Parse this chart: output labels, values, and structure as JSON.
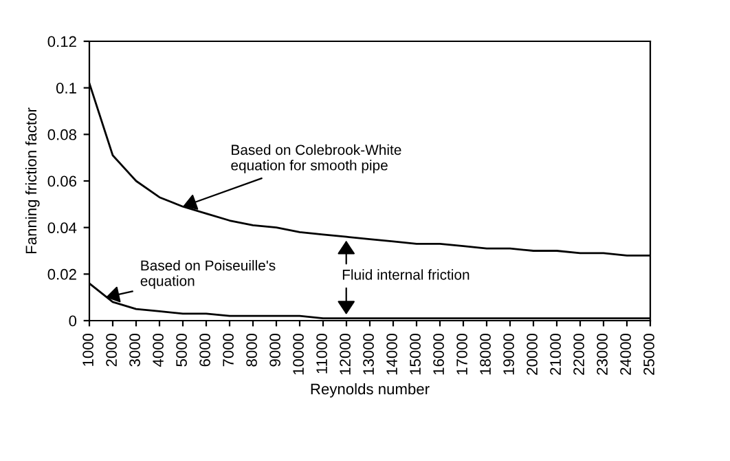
{
  "chart_data": {
    "type": "line",
    "xlabel": "Reynolds number",
    "ylabel": "Fanning friction factor",
    "x": [
      1000,
      2000,
      3000,
      4000,
      5000,
      6000,
      7000,
      8000,
      9000,
      10000,
      11000,
      12000,
      13000,
      14000,
      15000,
      16000,
      17000,
      18000,
      19000,
      20000,
      21000,
      22000,
      23000,
      24000,
      25000
    ],
    "series": [
      {
        "color": "#000000",
        "values": [
          0.102,
          0.071,
          0.06,
          0.053,
          0.049,
          0.046,
          0.043,
          0.041,
          0.04,
          0.038,
          0.037,
          0.036,
          0.035,
          0.034,
          0.033,
          0.033,
          0.032,
          0.031,
          0.031,
          0.03,
          0.03,
          0.029,
          0.029,
          0.028,
          0.028
        ]
      },
      {
        "color": "#000000",
        "values": [
          0.016,
          0.008,
          0.005,
          0.004,
          0.003,
          0.003,
          0.002,
          0.002,
          0.002,
          0.002,
          0.001,
          0.001,
          0.001,
          0.001,
          0.001,
          0.001,
          0.001,
          0.001,
          0.001,
          0.001,
          0.001,
          0.001,
          0.001,
          0.001,
          0.001
        ]
      }
    ],
    "annotations": [
      {
        "text": "Based on Colebrook-White\nequation for smooth pipe",
        "x": 5000,
        "y": 0.049
      },
      {
        "text": "Based on Poiseuille's\nequation",
        "x": 1700,
        "y": 0.01
      },
      "Fluid internal friction"
    ],
    "xlim": [
      1000,
      25000
    ],
    "xticks": [
      1000,
      2000,
      3000,
      4000,
      5000,
      6000,
      7000,
      8000,
      9000,
      10000,
      11000,
      12000,
      13000,
      14000,
      15000,
      16000,
      17000,
      18000,
      19000,
      20000,
      21000,
      22000,
      23000,
      24000,
      25000
    ],
    "ylim": [
      0,
      0.12
    ],
    "yticks": [
      0,
      0.02,
      0.04,
      0.06,
      0.08,
      0.1,
      0.12
    ],
    "grid": false,
    "legend": false,
    "marker": "none",
    "line_style": "solid"
  }
}
